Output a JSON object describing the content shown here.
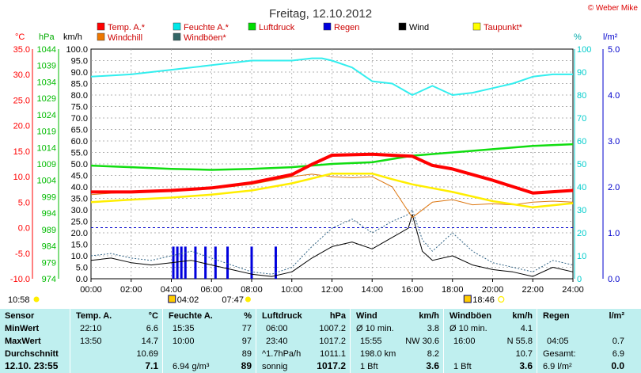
{
  "title": "Freitag, 12.10.2012",
  "copyright": "© Weber Mike",
  "chart_data": {
    "type": "line",
    "x_unit": "time of day (hours)",
    "x_ticks": [
      "00:00",
      "02:00",
      "04:00",
      "06:00",
      "08:00",
      "10:00",
      "12:00",
      "14:00",
      "16:00",
      "18:00",
      "20:00",
      "22:00",
      "24:00"
    ],
    "axes": [
      {
        "label": "°C",
        "ticks": [
          "35.0",
          "30.0",
          "25.0",
          "20.0",
          "15.0",
          "10.0",
          "5.0",
          "0.0",
          "-5.0",
          "-10.0"
        ],
        "range": [
          -10,
          35
        ],
        "color": "#ff0000"
      },
      {
        "label": "hPa",
        "ticks": [
          "1044",
          "1039",
          "1034",
          "1029",
          "1024",
          "1019",
          "1014",
          "1009",
          "1004",
          "999",
          "994",
          "989",
          "984",
          "979",
          "974"
        ],
        "range": [
          974,
          1044
        ],
        "color": "#00bb00"
      },
      {
        "label": "km/h",
        "ticks": [
          "100.0",
          "95.0",
          "90.0",
          "85.0",
          "80.0",
          "75.0",
          "70.0",
          "65.0",
          "60.0",
          "55.0",
          "50.0",
          "45.0",
          "40.0",
          "35.0",
          "30.0",
          "25.0",
          "20.0",
          "15.0",
          "10.0",
          "5.0",
          "0.0"
        ],
        "range": [
          0,
          100
        ],
        "color": "#000000"
      },
      {
        "label": "%",
        "ticks": [
          "100",
          "90",
          "80",
          "70",
          "60",
          "50",
          "40",
          "30",
          "20",
          "10",
          "0"
        ],
        "range": [
          0,
          100
        ],
        "color": "#00cccc"
      },
      {
        "label": "l/m²",
        "ticks": [
          "5.0",
          "4.0",
          "3.0",
          "2.0",
          "1.0",
          "0.0"
        ],
        "range": [
          0,
          5
        ],
        "color": "#0000cc"
      }
    ],
    "legend": [
      {
        "name": "Temp. A.*",
        "color": "#ff0000"
      },
      {
        "name": "Feuchte A.*",
        "color": "#00e8e8"
      },
      {
        "name": "Luftdruck",
        "color": "#00dd00"
      },
      {
        "name": "Regen",
        "color": "#0000dd"
      },
      {
        "name": "Wind",
        "color": "#000000"
      },
      {
        "name": "Taupunkt*",
        "color": "#ffff00"
      },
      {
        "name": "Windchill",
        "color": "#ee7700"
      },
      {
        "name": "Windböen*",
        "color": "#336666"
      }
    ],
    "series": [
      {
        "name": "Temp. A.*",
        "axis": "°C",
        "x": [
          0,
          2,
          4,
          6,
          8,
          10,
          11,
          12,
          14,
          16,
          17,
          18,
          20,
          22,
          24
        ],
        "y": [
          7,
          7,
          7.3,
          7.8,
          8.8,
          10.4,
          12.4,
          14.2,
          14.4,
          14,
          12.2,
          11.5,
          9.3,
          6.8,
          7.3
        ]
      },
      {
        "name": "Feuchte A.*",
        "axis": "%",
        "x": [
          0,
          2,
          4,
          6,
          8,
          10,
          11,
          11.5,
          12,
          13,
          14,
          15,
          16,
          17,
          18,
          19,
          20,
          21,
          22,
          23,
          24
        ],
        "y": [
          88,
          89,
          91,
          93,
          95,
          95,
          96,
          96,
          95,
          92,
          86,
          85,
          80,
          84,
          80,
          81,
          83,
          85,
          88,
          89,
          89
        ]
      },
      {
        "name": "Luftdruck",
        "axis": "hPa",
        "x": [
          0,
          2,
          4,
          6,
          8,
          10,
          12,
          14,
          16,
          18,
          20,
          22,
          24
        ],
        "y": [
          1008.5,
          1008,
          1007.5,
          1007.2,
          1007.5,
          1008,
          1009,
          1009.5,
          1011.5,
          1012.5,
          1013.5,
          1014.5,
          1015
        ]
      },
      {
        "name": "Taupunkt*",
        "axis": "°C",
        "x": [
          0,
          2,
          4,
          6,
          8,
          10,
          12,
          14,
          15,
          16,
          18,
          20,
          22,
          24
        ],
        "y": [
          5,
          5.5,
          5.9,
          6.5,
          7.3,
          8.7,
          10.6,
          10.6,
          9.5,
          8.5,
          7,
          5.2,
          4,
          4.8
        ]
      },
      {
        "name": "Windchill",
        "axis": "°C",
        "x": [
          0,
          2,
          4,
          6,
          8,
          10,
          11,
          12,
          13,
          14,
          15,
          16,
          17,
          18,
          19,
          20,
          21,
          22,
          23,
          24
        ],
        "y": [
          6.5,
          7,
          7.2,
          7.6,
          8.5,
          10,
          10.5,
          10,
          9.8,
          10,
          8,
          2,
          5,
          5.5,
          4.5,
          4.7,
          4.5,
          5,
          5.2,
          5
        ]
      },
      {
        "name": "Wind",
        "axis": "km/h",
        "x": [
          0,
          1,
          2,
          3,
          4,
          5,
          6,
          7,
          8,
          9,
          10,
          11,
          12,
          13,
          14,
          15,
          15.8,
          16,
          16.5,
          17,
          18,
          19,
          20,
          21,
          22,
          23,
          24
        ],
        "y": [
          8,
          9,
          7,
          6,
          7,
          8,
          6,
          4,
          2,
          1,
          3,
          9,
          14,
          16,
          13,
          18,
          22,
          28,
          12,
          8,
          10,
          6,
          4,
          3,
          1,
          5,
          3
        ]
      },
      {
        "name": "Windböen*",
        "axis": "km/h",
        "x": [
          0,
          1,
          2,
          3,
          4,
          5,
          6,
          7,
          8,
          9,
          10,
          11,
          12,
          13,
          14,
          15,
          15.8,
          16,
          16.5,
          17,
          18,
          19,
          20,
          21,
          22,
          23,
          24
        ],
        "y": [
          10,
          11,
          9,
          8,
          10,
          12,
          9,
          6,
          3,
          2,
          5,
          14,
          22,
          26,
          20,
          25,
          28,
          30,
          17,
          12,
          20,
          12,
          7,
          5,
          3,
          8,
          6
        ]
      }
    ],
    "rain_bars": {
      "axis": "l/m²",
      "x": [
        4.1,
        4.3,
        4.5,
        4.7,
        5.2,
        5.7,
        6.2,
        6.8,
        8.0,
        9.2
      ],
      "values": [
        0.7,
        0.7,
        0.7,
        0.7,
        0.7,
        0.7,
        0.7,
        0.7,
        0.7,
        0.7
      ]
    },
    "thresholds": [
      {
        "axis": "°C",
        "value": 0
      }
    ],
    "sun_info": {
      "left": "10:58",
      "sunrise": "04:02",
      "sunrise2": "07:47",
      "sunset": "18:46"
    }
  },
  "stats": {
    "sensor": {
      "header": "Sensor",
      "rows": [
        "MinWert",
        "MaxWert",
        "Durchschnitt",
        "12.10. 23:55"
      ]
    },
    "temp": {
      "header": "Temp. A.",
      "unit": "°C",
      "min_time": "22:10",
      "min_val": "6.6",
      "max_time": "13:50",
      "max_val": "14.7",
      "avg": "10.69",
      "cur": "7.1"
    },
    "humidity": {
      "header": "Feuchte A.",
      "unit": "%",
      "min_time": "15:35",
      "min_val": "77",
      "max_time": "10:00",
      "max_val": "97",
      "avg": "89",
      "extra": "6.94 g/m³",
      "cur": "89"
    },
    "pressure": {
      "header": "Luftdruck",
      "unit": "hPa",
      "min_time": "06:00",
      "min_val": "1007.2",
      "max_time": "23:40",
      "max_val": "1017.2",
      "trend": "^1.7hPa/h",
      "avg": "1011.1",
      "weather": "sonnig",
      "cur": "1017.2"
    },
    "wind": {
      "header": "Wind",
      "unit": "km/h",
      "r1_label": "Ø 10 min.",
      "r1_val": "3.8",
      "r2_time": "15:55",
      "r2_dir": "NW 30.6",
      "r3_label": "198.0 km",
      "r3_val": "8.2",
      "r4_label": "1 Bft",
      "r4_val": "3.6"
    },
    "gusts": {
      "header": "Windböen",
      "unit": "km/h",
      "r1_label": "Ø 10 min.",
      "r1_val": "4.1",
      "r2_time": "16:00",
      "r2_dir": "N 55.8",
      "r3_val": "10.7",
      "r4_label": "1 Bft",
      "r4_val": "3.6"
    },
    "rain": {
      "header": "Regen",
      "unit": "l/m²",
      "r2_time": "04:05",
      "r2_val": "0.7",
      "r3_label": "Gesamt:",
      "r3_val": "6.9",
      "r4_label": "6.9 l/m²",
      "r4_val": "0.0"
    }
  }
}
